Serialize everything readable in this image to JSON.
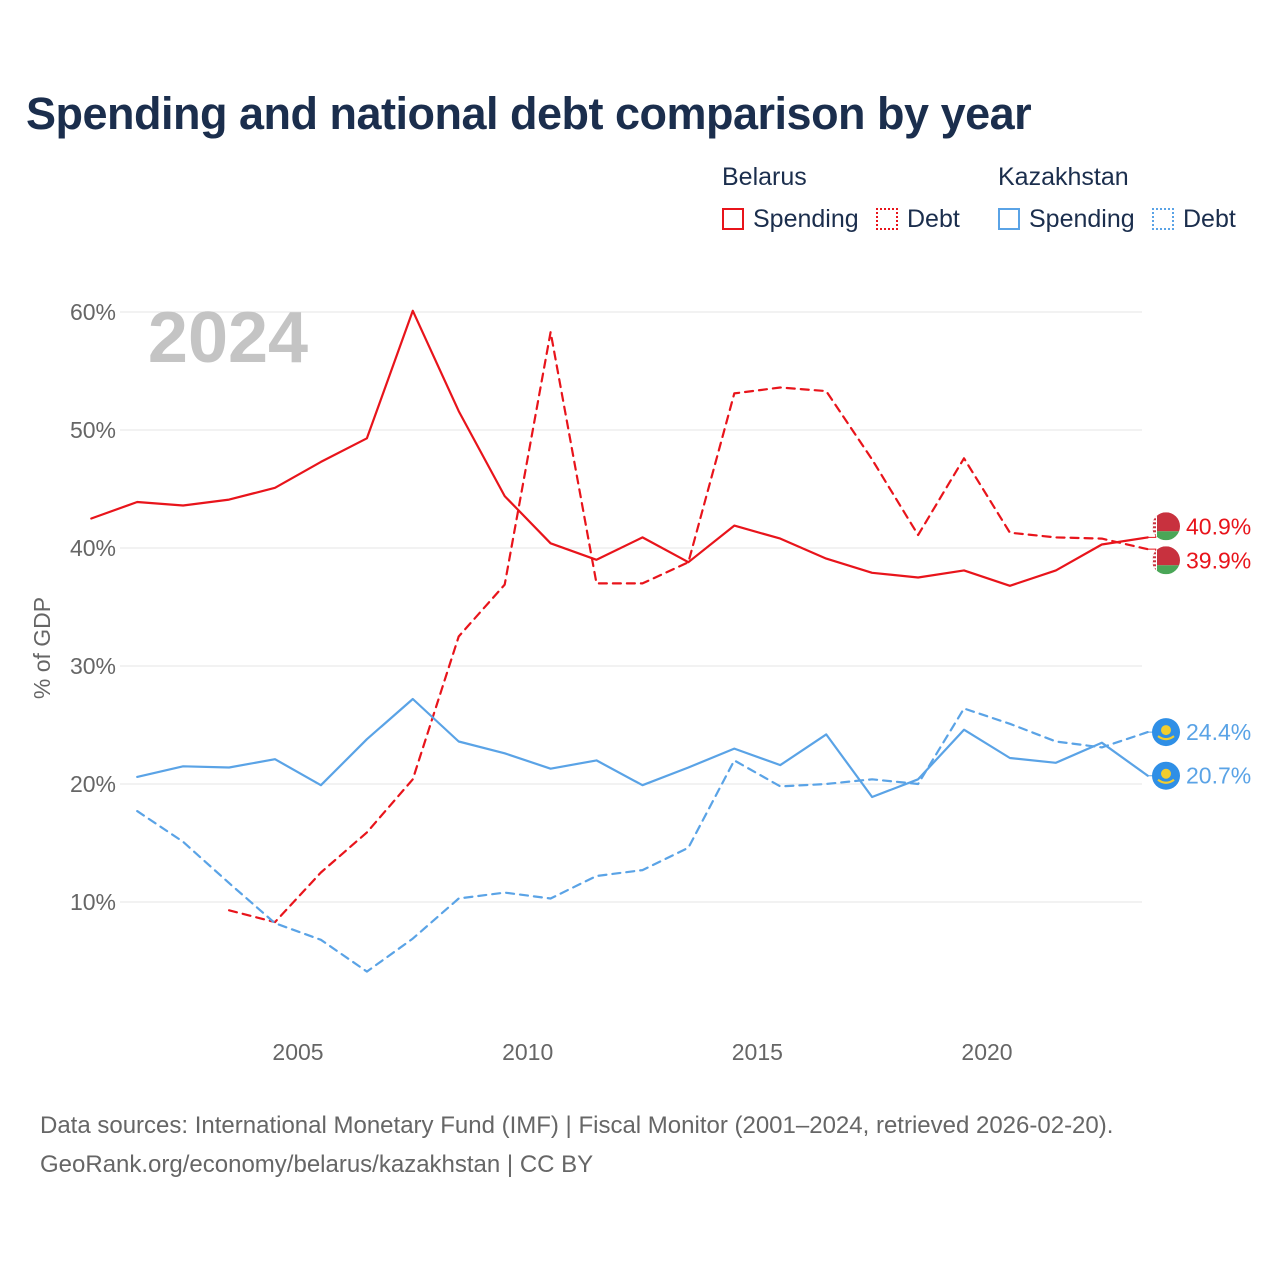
{
  "title": "Spending and national debt comparison by year",
  "legend": {
    "groups": [
      {
        "country": "Belarus",
        "color": "#e8141b",
        "items": [
          {
            "label": "Spending",
            "style": "solid"
          },
          {
            "label": "Debt",
            "style": "dotted"
          }
        ]
      },
      {
        "country": "Kazakhstan",
        "color": "#5aa3e6",
        "items": [
          {
            "label": "Spending",
            "style": "solid"
          },
          {
            "label": "Debt",
            "style": "dotted"
          }
        ]
      }
    ]
  },
  "footer": {
    "line1": "Data sources: International Monetary Fund (IMF) | Fiscal Monitor (2001–2024, retrieved 2026-02-20).",
    "line2": "GeoRank.org/economy/belarus/kazakhstan | CC BY"
  },
  "chart_data": {
    "type": "line",
    "title": "Spending and national debt comparison by year",
    "year_label": "2024",
    "xlabel": "",
    "ylabel": "% of GDP",
    "xlim": [
      2001,
      2024
    ],
    "ylim": [
      0,
      60
    ],
    "x_ticks": [
      2005,
      2010,
      2015,
      2020
    ],
    "y_ticks": [
      10,
      20,
      30,
      40,
      50,
      60
    ],
    "y_tick_labels": [
      "10%",
      "20%",
      "30%",
      "40%",
      "50%",
      "60%"
    ],
    "grid": true,
    "series": [
      {
        "name": "Belarus Spending",
        "color": "#e8141b",
        "dash": "solid",
        "x": [
          2001,
          2002,
          2003,
          2004,
          2005,
          2006,
          2007,
          2008,
          2009,
          2010,
          2011,
          2012,
          2013,
          2014,
          2015,
          2016,
          2017,
          2018,
          2019,
          2020,
          2021,
          2022,
          2023,
          2024
        ],
        "y": [
          42.5,
          43.9,
          43.6,
          44.1,
          45.1,
          47.3,
          49.3,
          60.1,
          51.6,
          44.4,
          40.4,
          39.0,
          40.9,
          38.8,
          41.9,
          40.8,
          39.1,
          37.9,
          37.5,
          38.1,
          36.8,
          38.1,
          40.3,
          40.9
        ],
        "end_label": "40.9%"
      },
      {
        "name": "Belarus Debt",
        "color": "#e8141b",
        "dash": "dashed",
        "x": [
          2004,
          2005,
          2006,
          2007,
          2008,
          2009,
          2010,
          2011,
          2012,
          2013,
          2014,
          2015,
          2016,
          2017,
          2018,
          2019,
          2020,
          2021,
          2022,
          2023,
          2024
        ],
        "y": [
          9.3,
          8.3,
          12.5,
          15.9,
          20.4,
          32.5,
          36.9,
          58.3,
          37.0,
          37.0,
          38.8,
          53.1,
          53.6,
          53.3,
          47.5,
          41.1,
          47.6,
          41.3,
          40.9,
          40.8,
          39.9
        ],
        "end_label": "39.9%"
      },
      {
        "name": "Kazakhstan Spending",
        "color": "#5aa3e6",
        "dash": "solid",
        "x": [
          2002,
          2003,
          2004,
          2005,
          2006,
          2007,
          2008,
          2009,
          2010,
          2011,
          2012,
          2013,
          2014,
          2015,
          2016,
          2017,
          2018,
          2019,
          2020,
          2021,
          2022,
          2023,
          2024
        ],
        "y": [
          20.6,
          21.5,
          21.4,
          22.1,
          19.9,
          23.8,
          27.2,
          23.6,
          22.6,
          21.3,
          22.0,
          19.9,
          21.4,
          23.0,
          21.6,
          24.2,
          18.9,
          20.4,
          24.6,
          22.2,
          21.8,
          23.5,
          20.7
        ],
        "end_label": "20.7%"
      },
      {
        "name": "Kazakhstan Debt",
        "color": "#5aa3e6",
        "dash": "dashed",
        "x": [
          2002,
          2003,
          2004,
          2005,
          2006,
          2007,
          2008,
          2009,
          2010,
          2011,
          2012,
          2013,
          2014,
          2015,
          2016,
          2017,
          2018,
          2019,
          2020,
          2021,
          2022,
          2023,
          2024
        ],
        "y": [
          17.7,
          15.1,
          11.6,
          8.2,
          6.8,
          4.1,
          6.9,
          10.3,
          10.8,
          10.3,
          12.2,
          12.7,
          14.6,
          22.0,
          19.8,
          20.0,
          20.4,
          20.0,
          26.4,
          25.1,
          23.6,
          23.1,
          24.4
        ],
        "end_label": "24.4%"
      }
    ]
  }
}
